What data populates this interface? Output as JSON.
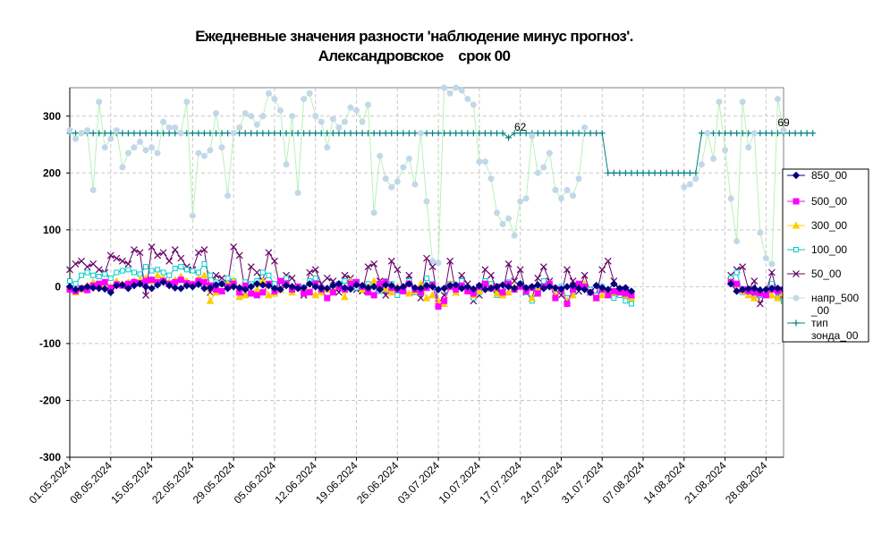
{
  "chart_data": {
    "type": "line",
    "title": "Ежедневные значения разности 'наблюдение минус прогноз'.",
    "subtitle": "Александровское    срок 00",
    "xlabel": "",
    "ylabel": "",
    "ylim": [
      -300,
      350
    ],
    "yticks": [
      "300",
      "200",
      "100",
      "0",
      "-100",
      "-200",
      "-300"
    ],
    "xlim": [
      "2024-05-01",
      "2024-08-31"
    ],
    "xticks": [
      "01.05.2024",
      "08.05.2024",
      "15.05.2024",
      "22.05.2024",
      "29.05.2024",
      "05.06.2024",
      "12.06.2024",
      "19.06.2024",
      "26.06.2024",
      "03.07.2024",
      "10.07.2024",
      "17.07.2024",
      "24.07.2024",
      "31.07.2024",
      "07.08.2024",
      "14.08.2024",
      "21.08.2024",
      "28.08.2024"
    ],
    "grid": true,
    "legend_position": "right",
    "annotations": [
      {
        "text": "62",
        "x": "2024-07-17",
        "y": 262
      },
      {
        "text": "69",
        "x": "2024-08-31",
        "y": 270
      }
    ],
    "series": [
      {
        "name": "850_00",
        "color": "#000080",
        "marker": "diamond",
        "start": "2024-05-01",
        "values": [
          0,
          -5,
          -3,
          0,
          -2,
          -3,
          -4,
          -10,
          2,
          3,
          -3,
          2,
          5,
          0,
          -3,
          3,
          8,
          2,
          -2,
          -3,
          2,
          0,
          4,
          -3,
          -2,
          3,
          5,
          -3,
          0,
          -2,
          -5,
          0,
          5,
          3,
          2,
          -3,
          -5,
          2,
          0,
          -3,
          -2,
          5,
          0,
          -3,
          -3,
          2,
          5,
          -2,
          -4,
          3,
          2,
          -2,
          0,
          -5,
          3,
          2,
          -3,
          0,
          5,
          -2,
          -3,
          2,
          0,
          -5,
          -3,
          2,
          3,
          -3,
          0,
          -4,
          2,
          -5,
          -3,
          0,
          3,
          0,
          -3,
          5,
          -2,
          0,
          3,
          -3,
          0,
          -2,
          -4,
          0,
          2,
          -3,
          -5,
          -10,
          2,
          -2,
          -5,
          5,
          -3,
          -2,
          -8,
          null,
          null,
          null,
          null,
          null,
          null,
          null,
          null,
          null,
          null,
          null,
          null,
          null,
          null,
          null,
          null,
          5,
          -8,
          -5,
          -4,
          -3,
          -6,
          -5,
          -3,
          -3,
          -4,
          -8,
          -10,
          -2,
          -12,
          -15,
          -3,
          -18,
          -5
        ]
      },
      {
        "name": "500_00",
        "color": "#ff00ff",
        "marker": "square",
        "start": "2024-05-01",
        "values": [
          -5,
          -8,
          -3,
          -6,
          2,
          5,
          8,
          -2,
          4,
          2,
          5,
          8,
          6,
          10,
          12,
          8,
          10,
          5,
          8,
          12,
          6,
          4,
          10,
          8,
          2,
          -5,
          -8,
          0,
          5,
          -10,
          2,
          -12,
          -15,
          -10,
          5,
          -8,
          10,
          5,
          -5,
          0,
          -12,
          -10,
          5,
          -5,
          -20,
          -10,
          0,
          -5,
          5,
          8,
          0,
          -10,
          -15,
          5,
          8,
          -2,
          -5,
          -8,
          5,
          -5,
          -10,
          -2,
          3,
          -35,
          -25,
          0,
          -5,
          2,
          -8,
          -12,
          0,
          5,
          -3,
          0,
          -10,
          5,
          -5,
          0,
          -8,
          -2,
          -12,
          0,
          5,
          -20,
          -5,
          -30,
          -5,
          5,
          0,
          -10,
          -20,
          -5,
          -15,
          -8,
          -10,
          -12,
          -15,
          null,
          null,
          null,
          null,
          null,
          null,
          null,
          null,
          null,
          null,
          null,
          null,
          null,
          null,
          null,
          null,
          8,
          5,
          -5,
          -8,
          -10,
          -12,
          -15,
          -5,
          -8,
          -5,
          -15,
          -20,
          -12,
          -5,
          -15,
          -8,
          2,
          -10
        ]
      },
      {
        "name": "300_00",
        "color": "#ffcc00",
        "marker": "triangle",
        "start": "2024-05-01",
        "values": [
          0,
          -10,
          -5,
          2,
          8,
          3,
          5,
          0,
          10,
          5,
          8,
          10,
          12,
          15,
          10,
          20,
          15,
          8,
          12,
          18,
          10,
          5,
          15,
          20,
          -25,
          -10,
          -8,
          5,
          10,
          -18,
          -15,
          -10,
          -5,
          10,
          -15,
          -12,
          -5,
          5,
          -10,
          0,
          -5,
          -8,
          -15,
          -10,
          -5,
          -5,
          5,
          -18,
          10,
          5,
          -5,
          0,
          10,
          5,
          -3,
          -10,
          0,
          -5,
          -12,
          -8,
          5,
          -20,
          -15,
          -25,
          -30,
          5,
          -10,
          0,
          -5,
          -15,
          -8,
          5,
          0,
          -12,
          -15,
          -10,
          0,
          5,
          -8,
          -20,
          -5,
          0,
          5,
          -15,
          -5,
          -25,
          -15,
          0,
          5,
          -10,
          -20,
          -15,
          -5,
          -10,
          -8,
          -15,
          -20,
          null,
          null,
          null,
          null,
          null,
          null,
          null,
          null,
          null,
          null,
          null,
          null,
          null,
          null,
          null,
          null,
          10,
          -5,
          -8,
          -15,
          -20,
          -10,
          -5,
          -15,
          -20,
          -12,
          -25,
          -30,
          -15,
          -35,
          -20,
          -18,
          -10,
          -5
        ]
      },
      {
        "name": "100_00",
        "color": "#00cccc",
        "marker": "square-open",
        "start": "2024-05-01",
        "values": [
          10,
          5,
          20,
          25,
          20,
          18,
          22,
          15,
          25,
          28,
          30,
          25,
          22,
          35,
          28,
          30,
          25,
          20,
          32,
          35,
          30,
          28,
          25,
          40,
          20,
          8,
          5,
          15,
          10,
          -5,
          8,
          5,
          10,
          25,
          20,
          5,
          10,
          15,
          -5,
          0,
          -2,
          10,
          15,
          -10,
          -5,
          2,
          5,
          10,
          8,
          -2,
          -5,
          5,
          0,
          -8,
          10,
          5,
          -15,
          -5,
          10,
          -10,
          -12,
          15,
          5,
          -30,
          -25,
          5,
          -8,
          10,
          -5,
          -20,
          -10,
          10,
          5,
          -15,
          -10,
          8,
          -5,
          5,
          -10,
          -25,
          -5,
          10,
          5,
          -18,
          0,
          -20,
          -10,
          5,
          2,
          -5,
          -15,
          0,
          -10,
          -20,
          -15,
          -25,
          -30,
          null,
          null,
          null,
          null,
          null,
          null,
          null,
          null,
          null,
          null,
          null,
          null,
          null,
          null,
          null,
          null,
          15,
          25,
          -10,
          -5,
          -20,
          -15,
          -10,
          5,
          -20,
          -25,
          -30,
          -40,
          -10,
          -35,
          -25,
          -15,
          -45,
          -20
        ]
      },
      {
        "name": "50_00",
        "color": "#660066",
        "marker": "x",
        "start": "2024-05-01",
        "values": [
          30,
          40,
          45,
          35,
          40,
          30,
          25,
          55,
          50,
          45,
          40,
          65,
          60,
          -15,
          70,
          55,
          60,
          45,
          65,
          50,
          35,
          30,
          60,
          65,
          -10,
          20,
          15,
          5,
          70,
          55,
          -10,
          35,
          25,
          10,
          60,
          45,
          -5,
          20,
          15,
          0,
          -15,
          25,
          30,
          5,
          15,
          10,
          -10,
          20,
          15,
          -5,
          -8,
          35,
          40,
          10,
          -15,
          45,
          30,
          -5,
          20,
          -10,
          -20,
          50,
          35,
          -30,
          -15,
          45,
          -10,
          20,
          5,
          -25,
          -15,
          30,
          20,
          -5,
          -10,
          40,
          10,
          30,
          -10,
          -20,
          15,
          35,
          10,
          -5,
          -15,
          30,
          10,
          -8,
          20,
          -10,
          -15,
          30,
          45,
          10,
          -5,
          -10,
          -15,
          null,
          null,
          null,
          null,
          null,
          null,
          null,
          null,
          null,
          null,
          null,
          null,
          null,
          null,
          null,
          null,
          20,
          30,
          35,
          -5,
          10,
          -30,
          -10,
          25,
          -15,
          -20,
          -25,
          30,
          -40,
          15,
          -10,
          -20,
          -55,
          -5
        ]
      },
      {
        "name": "напр_500_00",
        "color": "#c0d8e8",
        "line": "#b8f0b8",
        "marker": "circle",
        "start": "2024-05-01",
        "values": [
          275,
          260,
          270,
          275,
          170,
          325,
          245,
          260,
          275,
          210,
          235,
          245,
          255,
          240,
          245,
          235,
          290,
          280,
          280,
          270,
          325,
          125,
          235,
          230,
          240,
          305,
          245,
          160,
          270,
          280,
          305,
          300,
          285,
          300,
          340,
          330,
          310,
          215,
          300,
          165,
          330,
          340,
          300,
          290,
          245,
          295,
          280,
          290,
          315,
          310,
          290,
          320,
          130,
          230,
          190,
          175,
          185,
          210,
          225,
          180,
          270,
          150,
          45,
          42,
          350,
          340,
          350,
          345,
          330,
          320,
          220,
          220,
          190,
          130,
          110,
          120,
          90,
          150,
          155,
          265,
          200,
          210,
          235,
          170,
          155,
          170,
          160,
          190,
          280,
          null,
          null,
          null,
          null,
          null,
          null,
          null,
          null,
          null,
          null,
          null,
          null,
          null,
          null,
          null,
          null,
          175,
          180,
          190,
          215,
          270,
          225,
          325,
          240,
          155,
          80,
          325,
          245,
          270,
          95,
          50,
          40,
          330,
          275
        ]
      },
      {
        "name": "тип зонда_00",
        "color": "#008080",
        "marker": "plus",
        "start": "2024-05-01",
        "values": [
          270,
          270,
          270,
          270,
          270,
          270,
          270,
          270,
          270,
          270,
          270,
          270,
          270,
          270,
          270,
          270,
          270,
          270,
          270,
          270,
          270,
          270,
          270,
          270,
          270,
          270,
          270,
          270,
          270,
          270,
          270,
          270,
          270,
          270,
          270,
          270,
          270,
          270,
          270,
          270,
          270,
          270,
          270,
          270,
          270,
          270,
          270,
          270,
          270,
          270,
          270,
          270,
          270,
          270,
          270,
          270,
          270,
          270,
          270,
          270,
          270,
          270,
          270,
          270,
          270,
          270,
          270,
          270,
          270,
          270,
          270,
          270,
          270,
          270,
          270,
          262,
          270,
          270,
          270,
          270,
          270,
          270,
          270,
          270,
          270,
          270,
          270,
          270,
          270,
          270,
          270,
          270,
          200,
          200,
          200,
          200,
          200,
          200,
          200,
          200,
          200,
          200,
          200,
          200,
          200,
          200,
          200,
          200,
          270,
          270,
          270,
          270,
          270,
          270,
          270,
          270,
          270,
          270,
          270,
          270,
          270,
          270,
          270,
          270,
          270,
          270,
          270,
          270
        ]
      }
    ]
  }
}
